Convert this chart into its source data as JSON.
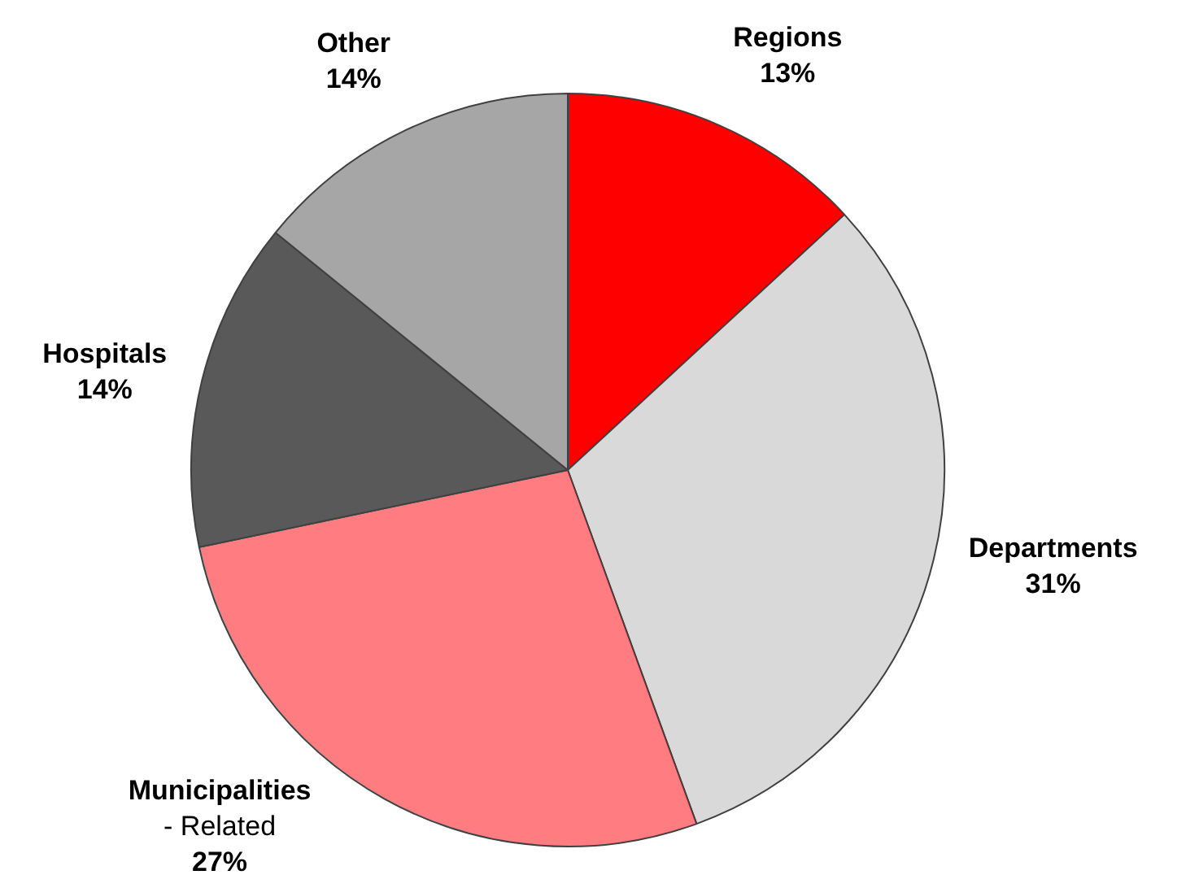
{
  "chart_data": {
    "type": "pie",
    "categories": [
      "Regions",
      "Departments",
      "Municipalities\n- Related",
      "Hospitals",
      "Other"
    ],
    "values": [
      13,
      31,
      27,
      14,
      14
    ],
    "value_labels": [
      "13%",
      "31%",
      "27%",
      "14%",
      "14%"
    ],
    "colors": [
      "#ff0000",
      "#d9d9d9",
      "#ff7c80",
      "#595959",
      "#a6a6a6"
    ],
    "legend": false
  }
}
